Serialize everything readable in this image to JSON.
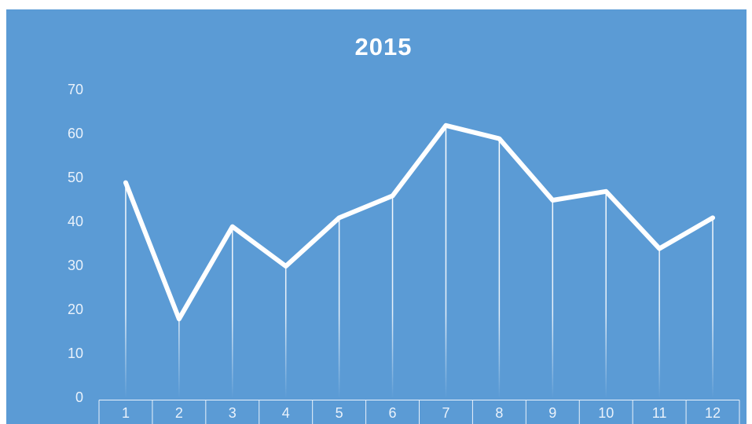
{
  "chart_data": {
    "type": "line",
    "title": "2015",
    "categories": [
      "1",
      "2",
      "3",
      "4",
      "5",
      "6",
      "7",
      "8",
      "9",
      "10",
      "11",
      "12"
    ],
    "values": [
      49,
      18,
      39,
      30,
      41,
      46,
      62,
      59,
      45,
      47,
      34,
      41
    ],
    "color": "#ffffff",
    "background": "#5b9bd5",
    "ylim": [
      0,
      70
    ],
    "yticks": [
      0,
      10,
      20,
      30,
      40,
      50,
      60,
      70
    ],
    "grid": false,
    "drop_lines": true
  }
}
